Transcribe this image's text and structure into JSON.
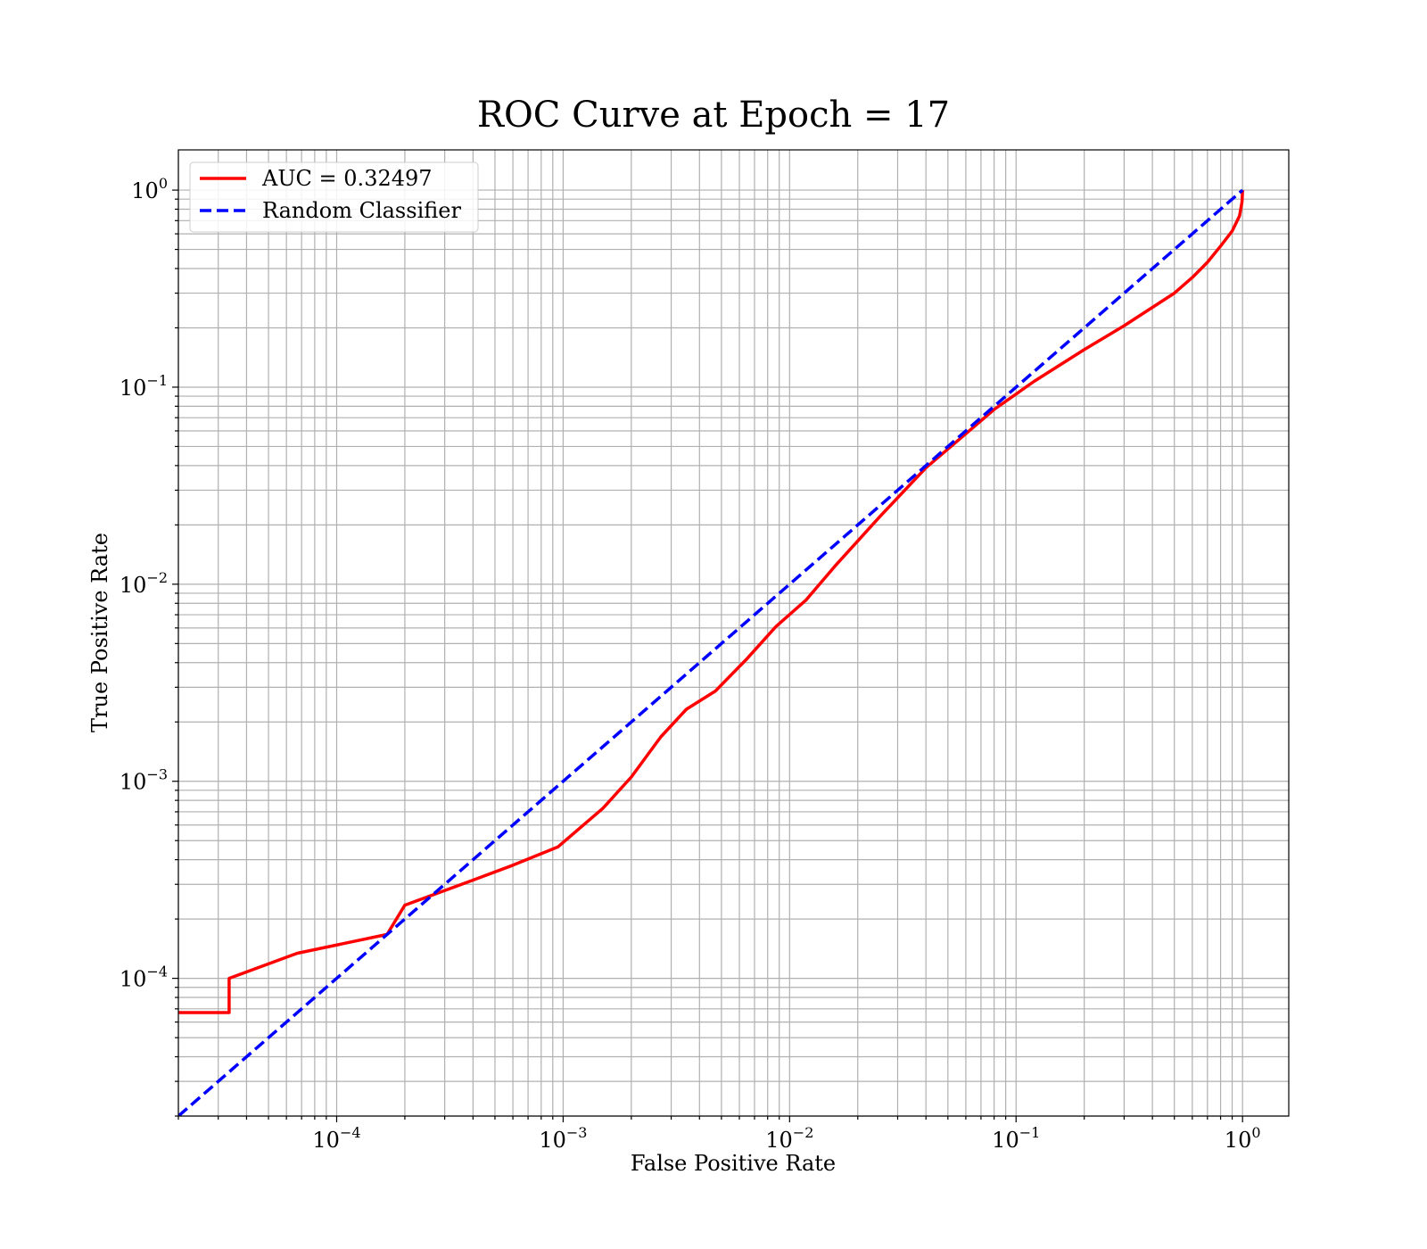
{
  "chart_data": {
    "type": "line",
    "title": "ROC Curve at Epoch = 17",
    "xlabel": "False Positive Rate",
    "ylabel": "True Positive Rate",
    "xscale": "log",
    "yscale": "log",
    "xlim": [
      2e-05,
      1.6
    ],
    "ylim": [
      2e-05,
      1.6
    ],
    "xticks": [
      {
        "base": "10",
        "exp": "−4",
        "value": 0.0001
      },
      {
        "base": "10",
        "exp": "−3",
        "value": 0.001
      },
      {
        "base": "10",
        "exp": "−2",
        "value": 0.01
      },
      {
        "base": "10",
        "exp": "−1",
        "value": 0.1
      },
      {
        "base": "10",
        "exp": "0",
        "value": 1
      }
    ],
    "yticks": [
      {
        "base": "10",
        "exp": "−4",
        "value": 0.0001
      },
      {
        "base": "10",
        "exp": "−3",
        "value": 0.001
      },
      {
        "base": "10",
        "exp": "−2",
        "value": 0.01
      },
      {
        "base": "10",
        "exp": "−1",
        "value": 0.1
      },
      {
        "base": "10",
        "exp": "0",
        "value": 1
      }
    ],
    "grid": true,
    "legend_position": "upper-left",
    "series": [
      {
        "name": "AUC = 0.32497",
        "color": "#ff0000",
        "style": "solid",
        "points": [
          [
            2e-05,
            6.7e-05
          ],
          [
            3.35e-05,
            6.7e-05
          ],
          [
            3.35e-05,
            0.0001
          ],
          [
            6.7e-05,
            0.000134
          ],
          [
            0.000167,
            0.000167
          ],
          [
            0.0002,
            0.000235
          ],
          [
            0.0004,
            0.000315
          ],
          [
            0.0006,
            0.000375
          ],
          [
            0.00095,
            0.000465
          ],
          [
            0.0015,
            0.00073
          ],
          [
            0.002,
            0.00105
          ],
          [
            0.0027,
            0.00168
          ],
          [
            0.0035,
            0.00232
          ],
          [
            0.0047,
            0.00287
          ],
          [
            0.0065,
            0.0042
          ],
          [
            0.0087,
            0.0061
          ],
          [
            0.0118,
            0.0083
          ],
          [
            0.016,
            0.0125
          ],
          [
            0.025,
            0.022
          ],
          [
            0.04,
            0.039
          ],
          [
            0.06,
            0.058
          ],
          [
            0.08,
            0.077
          ],
          [
            0.12,
            0.107
          ],
          [
            0.2,
            0.155
          ],
          [
            0.3,
            0.205
          ],
          [
            0.5,
            0.3
          ],
          [
            0.6,
            0.36
          ],
          [
            0.7,
            0.43
          ],
          [
            0.8,
            0.52
          ],
          [
            0.9,
            0.62
          ],
          [
            0.97,
            0.74
          ],
          [
            0.995,
            0.87
          ],
          [
            1.0,
            1.0
          ]
        ]
      },
      {
        "name": "Random Classifier",
        "color": "#0000ff",
        "style": "dashed",
        "points": [
          [
            2e-05,
            2e-05
          ],
          [
            1.0,
            1.0
          ]
        ]
      }
    ]
  }
}
